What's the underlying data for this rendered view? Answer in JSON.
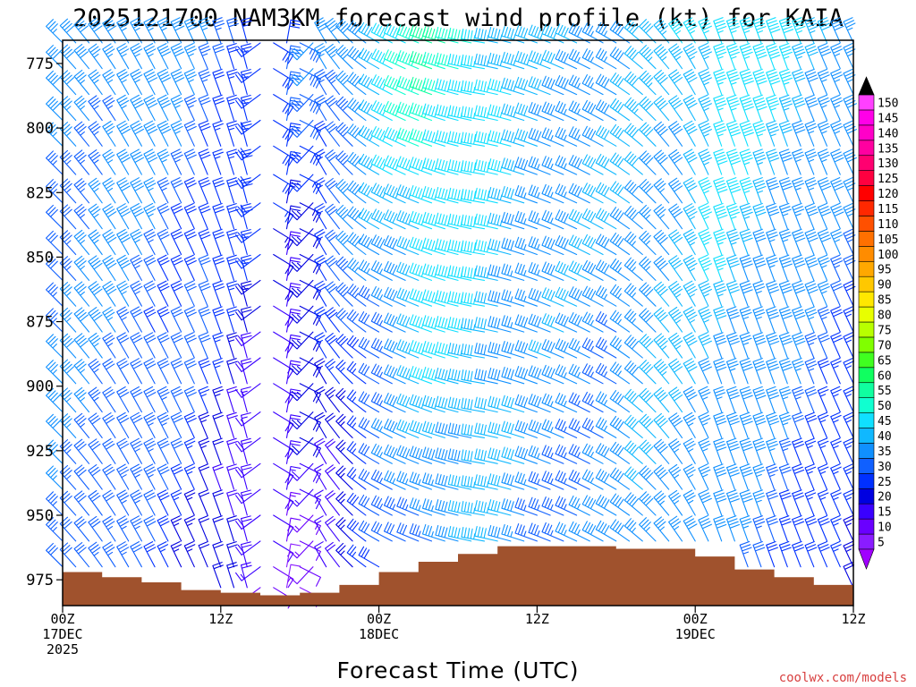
{
  "chart_data": {
    "type": "wind-barb-time-height",
    "title": "2025121700 NAM3KM forecast wind profile (kt) for KAIA",
    "xlabel": "Forecast Time (UTC)",
    "ylabel": "",
    "credit": "coolwx.com/models",
    "x_range_hours": [
      0,
      60
    ],
    "y_range_hpa": [
      985,
      766
    ],
    "y_ticks": [
      775,
      800,
      825,
      850,
      875,
      900,
      925,
      950,
      975
    ],
    "x_ticks": [
      {
        "hour": 0,
        "lines": [
          "00Z",
          "17DEC",
          "2025"
        ]
      },
      {
        "hour": 12,
        "lines": [
          "12Z"
        ]
      },
      {
        "hour": 24,
        "lines": [
          "00Z",
          "18DEC"
        ]
      },
      {
        "hour": 36,
        "lines": [
          "12Z"
        ]
      },
      {
        "hour": 48,
        "lines": [
          "00Z",
          "19DEC"
        ]
      },
      {
        "hour": 60,
        "lines": [
          "12Z"
        ]
      }
    ],
    "barb_levels_hpa": [
      767,
      777,
      787,
      797,
      807,
      818,
      829,
      839,
      849,
      859,
      869,
      879,
      889,
      899,
      910,
      920,
      930,
      940,
      950,
      960,
      970,
      978
    ],
    "wind_keyframes": [
      {
        "hour": 0,
        "dir": 315,
        "spd_top": 35,
        "spd_bot": 35
      },
      {
        "hour": 5,
        "dir": 330,
        "spd_top": 40,
        "spd_bot": 30
      },
      {
        "hour": 10,
        "dir": 335,
        "spd_top": 35,
        "spd_bot": 25
      },
      {
        "hour": 14,
        "dir": 345,
        "spd_top": 30,
        "spd_bot": 15
      },
      {
        "hour": 17,
        "dir": 10,
        "spd_top": 30,
        "spd_bot": 10
      },
      {
        "hour": 20,
        "dir": 330,
        "spd_top": 35,
        "spd_bot": 15
      },
      {
        "hour": 24,
        "dir": 300,
        "spd_top": 45,
        "spd_bot": 25
      },
      {
        "hour": 28,
        "dir": 290,
        "spd_top": 55,
        "spd_bot": 35
      },
      {
        "hour": 32,
        "dir": 280,
        "spd_top": 50,
        "spd_bot": 40
      },
      {
        "hour": 36,
        "dir": 290,
        "spd_top": 40,
        "spd_bot": 35
      },
      {
        "hour": 42,
        "dir": 300,
        "spd_top": 40,
        "spd_bot": 35
      },
      {
        "hour": 46,
        "dir": 320,
        "spd_top": 40,
        "spd_bot": 40
      },
      {
        "hour": 50,
        "dir": 340,
        "spd_top": 50,
        "spd_bot": 35
      },
      {
        "hour": 55,
        "dir": 340,
        "spd_top": 45,
        "spd_bot": 30
      },
      {
        "hour": 60,
        "dir": 335,
        "spd_top": 40,
        "spd_bot": 20
      }
    ],
    "surface_pressure_hpa": [
      {
        "hour": 0,
        "p": 972
      },
      {
        "hour": 3,
        "p": 974
      },
      {
        "hour": 6,
        "p": 976
      },
      {
        "hour": 9,
        "p": 979
      },
      {
        "hour": 12,
        "p": 980
      },
      {
        "hour": 15,
        "p": 981
      },
      {
        "hour": 18,
        "p": 980
      },
      {
        "hour": 21,
        "p": 977
      },
      {
        "hour": 24,
        "p": 972
      },
      {
        "hour": 27,
        "p": 968
      },
      {
        "hour": 30,
        "p": 965
      },
      {
        "hour": 33,
        "p": 962
      },
      {
        "hour": 36,
        "p": 962
      },
      {
        "hour": 42,
        "p": 963
      },
      {
        "hour": 45,
        "p": 963
      },
      {
        "hour": 48,
        "p": 966
      },
      {
        "hour": 51,
        "p": 971
      },
      {
        "hour": 54,
        "p": 974
      },
      {
        "hour": 57,
        "p": 977
      },
      {
        "hour": 60,
        "p": 980
      }
    ],
    "colorbar": {
      "labels": [
        "5",
        "10",
        "15",
        "20",
        "25",
        "30",
        "35",
        "40",
        "45",
        "50",
        "55",
        "60",
        "65",
        "70",
        "75",
        "80",
        "85",
        "90",
        "95",
        "100",
        "105",
        "110",
        "115",
        "120",
        "125",
        "130",
        "135",
        "140",
        "145",
        "150"
      ],
      "colors": [
        "#8a1cff",
        "#6a00ff",
        "#3a00ff",
        "#0000e0",
        "#0030ff",
        "#1060ff",
        "#1090ff",
        "#10b8ff",
        "#10e0ff",
        "#10ffd0",
        "#10ffa0",
        "#10ff60",
        "#40ff20",
        "#80ff00",
        "#b8ff00",
        "#e8ff00",
        "#ffe800",
        "#ffc800",
        "#ffa800",
        "#ff8c00",
        "#ff7000",
        "#ff5000",
        "#ff2800",
        "#ff0000",
        "#ff0040",
        "#ff0070",
        "#ff00a0",
        "#ff00c8",
        "#ff00e8",
        "#ff40ff"
      ],
      "under_color": "#a000ff",
      "over_color": "#000000"
    }
  }
}
